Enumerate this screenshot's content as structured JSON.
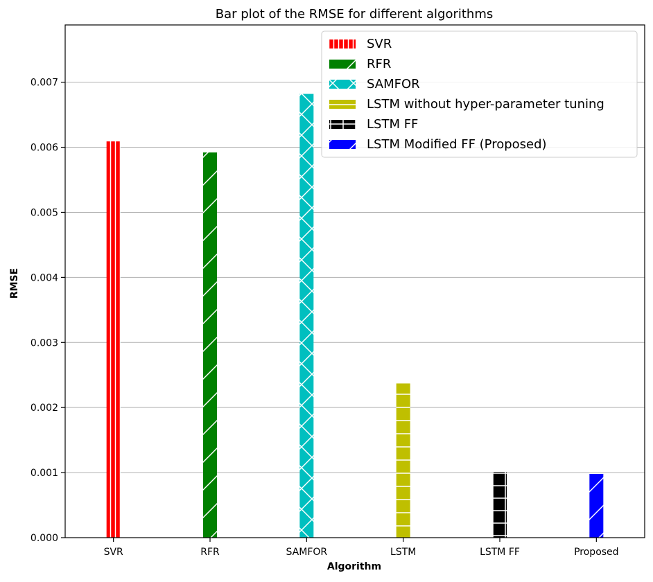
{
  "chart_data": {
    "type": "bar",
    "title": "Bar plot of the RMSE for different algorithms",
    "xlabel": "Algorithm",
    "ylabel": "RMSE",
    "categories": [
      "SVR",
      "RFR",
      "SAMFOR",
      "LSTM",
      "LSTM FF",
      "Proposed"
    ],
    "series": [
      {
        "name": "SVR",
        "values": [
          0.00609,
          null,
          null,
          null,
          null,
          null
        ],
        "color": "#ff0000",
        "hatch": "vertical"
      },
      {
        "name": "RFR",
        "values": [
          null,
          0.00592,
          null,
          null,
          null,
          null
        ],
        "color": "#008000",
        "hatch": "diagonal"
      },
      {
        "name": "SAMFOR",
        "values": [
          null,
          null,
          0.00682,
          null,
          null,
          null
        ],
        "color": "#00bfbf",
        "hatch": "cross"
      },
      {
        "name": "LSTM without hyper-parameter tuning",
        "values": [
          null,
          null,
          null,
          0.00237,
          null,
          null
        ],
        "color": "#bfbf00",
        "hatch": "horizontal"
      },
      {
        "name": "LSTM FF",
        "values": [
          null,
          null,
          null,
          null,
          0.00101,
          null
        ],
        "color": "#000000",
        "hatch": "plus"
      },
      {
        "name": "LSTM Modified FF (Proposed)",
        "values": [
          null,
          null,
          null,
          null,
          null,
          0.00098
        ],
        "color": "#0000ff",
        "hatch": "diagonal"
      }
    ],
    "ylim": [
      0,
      0.00788
    ],
    "yticks": [
      "0.000",
      "0.001",
      "0.002",
      "0.003",
      "0.004",
      "0.005",
      "0.006",
      "0.007"
    ],
    "grid": "horizontal",
    "legend": "top-right"
  }
}
